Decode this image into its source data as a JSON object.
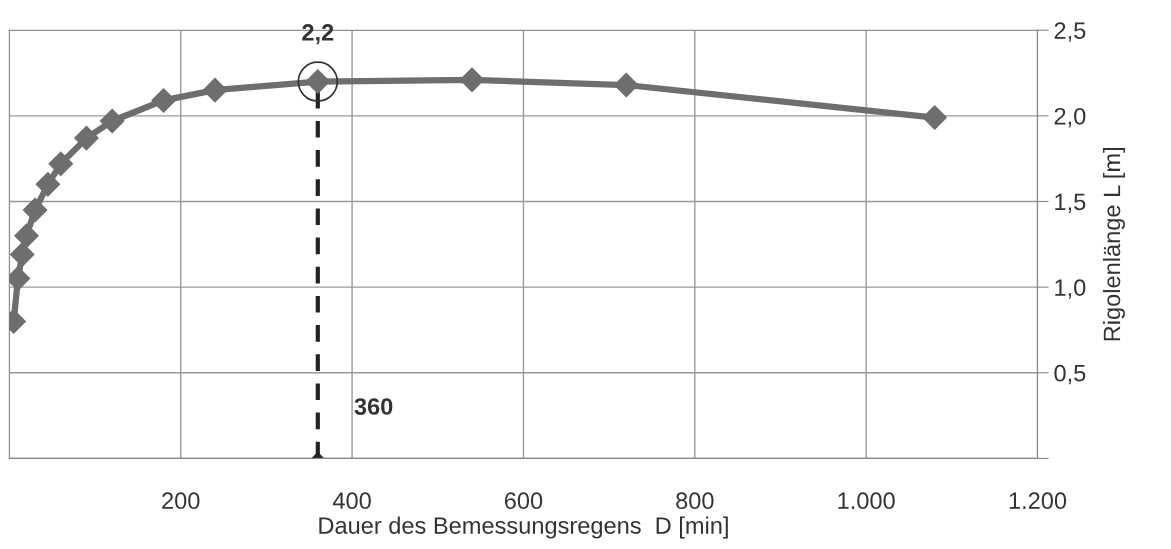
{
  "chart_data": {
    "type": "line",
    "xlabel": "Dauer des Bemessungsregens  D [min]",
    "ylabel": "Rigolenlänge L [m]",
    "series": [
      {
        "color": "#6e6e6e",
        "marker": "diamond",
        "line_style": "solid",
        "x": [
          5,
          10,
          15,
          20,
          30,
          45,
          60,
          90,
          120,
          180,
          240,
          360,
          540,
          720,
          1080
        ],
        "values": [
          0.8,
          1.05,
          1.19,
          1.3,
          1.45,
          1.6,
          1.72,
          1.87,
          1.97,
          2.09,
          2.15,
          2.2,
          2.21,
          2.18,
          1.99
        ]
      },
      {
        "color": "#222222",
        "marker": "diamond",
        "line_style": "dashed",
        "x": [
          360,
          360
        ],
        "values": [
          0,
          2.2
        ]
      }
    ],
    "annotations": [
      {
        "text": "2,2",
        "x": 360,
        "y": 2.2
      },
      {
        "text": "360",
        "x": 360,
        "y": 0
      }
    ],
    "xlim": [
      0,
      1200
    ],
    "xticks": [
      {
        "value": 0,
        "label": null
      },
      200,
      400,
      600,
      800,
      {
        "value": 1000,
        "label": "1.000"
      },
      {
        "value": 1200,
        "label": "1.200"
      }
    ],
    "ylim": [
      0,
      2.5
    ],
    "yticks": [
      {
        "value": 0,
        "label": null
      },
      {
        "value": 0.5,
        "label": "0,5"
      },
      {
        "value": 1.0,
        "label": "1,0"
      },
      {
        "value": 1.5,
        "label": "1,5"
      },
      {
        "value": 2.0,
        "label": "2,0"
      },
      {
        "value": 2.5,
        "label": "2,5"
      }
    ],
    "grid": true,
    "legend": false
  }
}
